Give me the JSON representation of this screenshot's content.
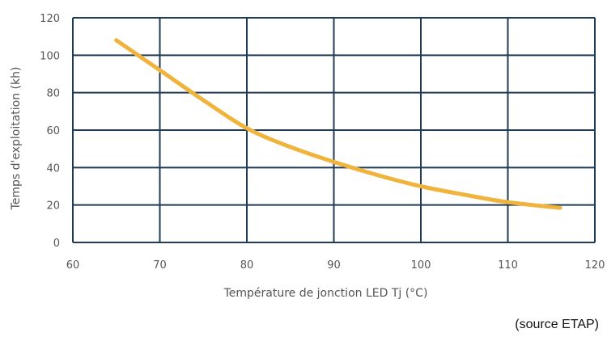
{
  "chart_data": {
    "type": "line",
    "title": "",
    "xlabel": "Température de jonction LED Tj (°C)",
    "ylabel": "Temps d'exploitation (kh)",
    "xlim": [
      60,
      120
    ],
    "ylim": [
      0,
      120
    ],
    "x_ticks": [
      60,
      70,
      80,
      90,
      100,
      110,
      120
    ],
    "y_ticks": [
      0,
      20,
      40,
      60,
      80,
      100,
      120
    ],
    "grid": true,
    "series": [
      {
        "color": "#f0b33c",
        "x": [
          65,
          70,
          75,
          80,
          85,
          90,
          95,
          100,
          105,
          110,
          116
        ],
        "y": [
          108,
          92,
          76,
          61,
          51,
          43,
          36,
          30,
          25.5,
          21.5,
          18.5
        ]
      }
    ]
  },
  "source_note": "(source ETAP)",
  "colors": {
    "grid": "#1f3b57",
    "series": "#f0b33c",
    "text": "#555555"
  }
}
